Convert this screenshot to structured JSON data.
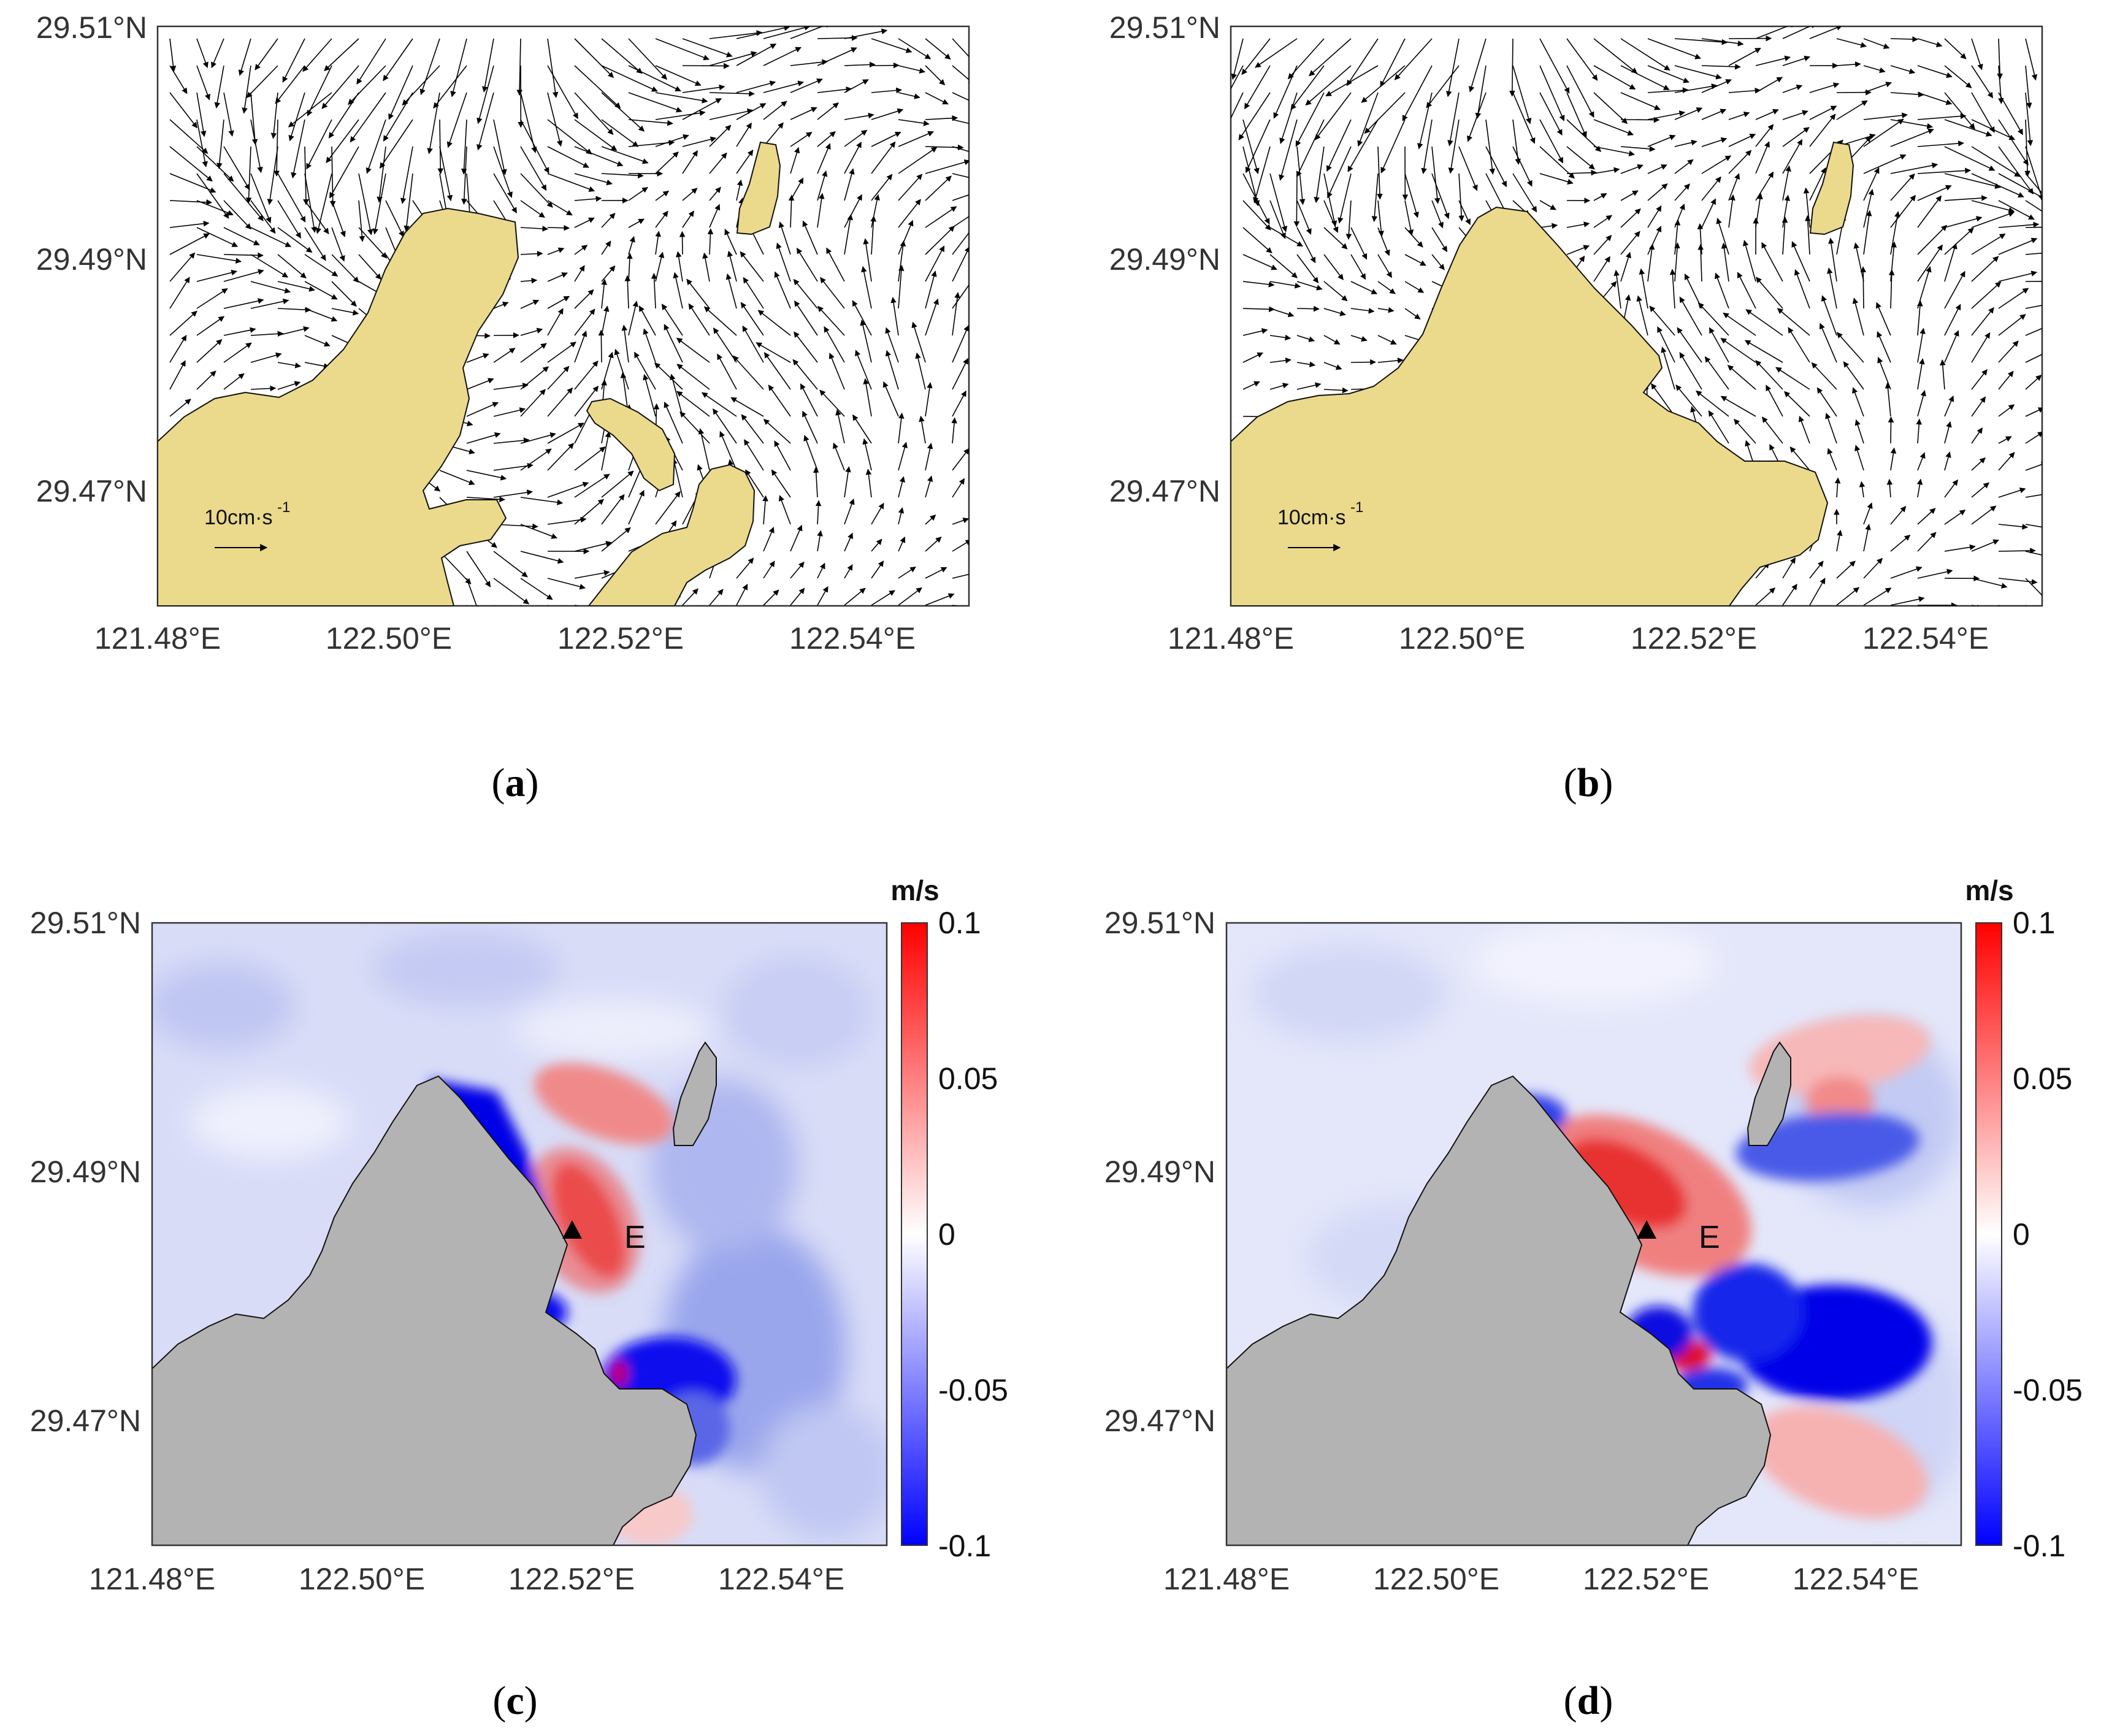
{
  "axes": {
    "x_ticks": [
      "121.48°E",
      "122.50°E",
      "122.52°E",
      "122.54°E"
    ],
    "y_ticks": [
      "29.51°N",
      "29.49°N",
      "29.47°N"
    ]
  },
  "scale_arrow": {
    "label": "10cm·s",
    "exponent": "-1"
  },
  "colorbar": {
    "unit": "m/s",
    "ticks": [
      "0.1",
      "0.05",
      "0",
      "-0.05",
      "-0.1"
    ],
    "range": [
      -0.1,
      0.1
    ],
    "low_color": "#0000ff",
    "high_color": "#ff0000"
  },
  "marker": {
    "label": "E"
  },
  "captions": {
    "a": "a",
    "b": "b",
    "c": "c",
    "d": "d"
  },
  "colors": {
    "land_vector": "#ebd98c",
    "land_field": "#b3b3b3"
  }
}
